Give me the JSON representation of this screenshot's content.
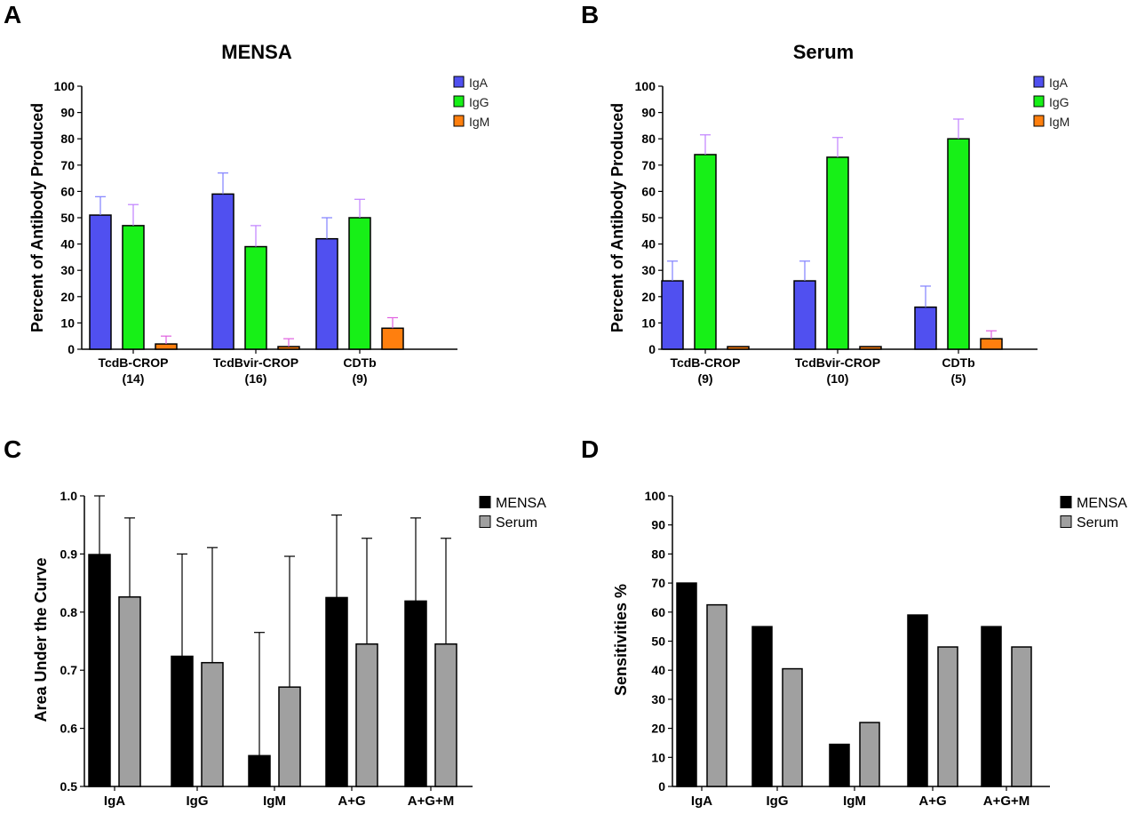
{
  "panels": [
    {
      "letter": "A",
      "chart_data": {
        "type": "bar",
        "title": "MENSA",
        "ylabel": "Percent of Antibody Produced",
        "xlabel": "",
        "ylim": [
          0,
          100
        ],
        "yticks": [
          0,
          10,
          20,
          30,
          40,
          50,
          60,
          70,
          80,
          90,
          100
        ],
        "categories": [
          "TcdB-CROP",
          "TcdBvir-CROP",
          "CDTb"
        ],
        "category_sublabels": [
          "(14)",
          "(16)",
          "(9)"
        ],
        "series": [
          {
            "name": "IgA",
            "color": "#5050f0",
            "values": [
              51,
              59,
              42
            ],
            "error": [
              7,
              8,
              8
            ]
          },
          {
            "name": "IgG",
            "color": "#17f017",
            "values": [
              47,
              39,
              50
            ],
            "error": [
              8,
              8,
              7
            ]
          },
          {
            "name": "IgM",
            "color": "#ff7f0e",
            "values": [
              2,
              1,
              8
            ],
            "error": [
              3,
              3,
              4
            ]
          }
        ],
        "error_bars": "upper",
        "legend": "top-right",
        "grid": false
      }
    },
    {
      "letter": "B",
      "chart_data": {
        "type": "bar",
        "title": "Serum",
        "ylabel": "Percent of Antibody Produced",
        "xlabel": "",
        "ylim": [
          0,
          100
        ],
        "yticks": [
          0,
          10,
          20,
          30,
          40,
          50,
          60,
          70,
          80,
          90,
          100
        ],
        "categories": [
          "TcdB-CROP",
          "TcdBvir-CROP",
          "CDTb"
        ],
        "category_sublabels": [
          "(9)",
          "(10)",
          "(5)"
        ],
        "series": [
          {
            "name": "IgA",
            "color": "#5050f0",
            "values": [
              26,
              26,
              16
            ],
            "error": [
              7.5,
              7.5,
              8
            ]
          },
          {
            "name": "IgG",
            "color": "#17f017",
            "values": [
              74,
              73,
              80
            ],
            "error": [
              7.5,
              7.5,
              7.5
            ]
          },
          {
            "name": "IgM",
            "color": "#ff7f0e",
            "values": [
              1,
              1,
              4
            ],
            "error": [
              0,
              0,
              3
            ]
          }
        ],
        "error_bars": "upper",
        "legend": "top-right",
        "grid": false
      }
    },
    {
      "letter": "C",
      "chart_data": {
        "type": "bar",
        "title": "",
        "ylabel": "Area Under the Curve",
        "xlabel": "",
        "ylim": [
          0.5,
          1.0
        ],
        "yticks": [
          "0.5",
          "0.6",
          "0.7",
          "0.8",
          "0.9",
          "1.0"
        ],
        "categories": [
          "IgA",
          "IgG",
          "IgM",
          "A+G",
          "A+G+M"
        ],
        "series": [
          {
            "name": "MENSA",
            "color": "#000000",
            "values": [
              0.899,
              0.724,
              0.553,
              0.825,
              0.819
            ],
            "error": [
              0.101,
              0.176,
              0.212,
              0.142,
              0.143
            ]
          },
          {
            "name": "Serum",
            "color": "#a0a0a0",
            "values": [
              0.826,
              0.713,
              0.671,
              0.745,
              0.745
            ],
            "error": [
              0.136,
              0.198,
              0.225,
              0.182,
              0.182
            ]
          }
        ],
        "error_bars": "upper",
        "legend": "top-right",
        "grid": false
      }
    },
    {
      "letter": "D",
      "chart_data": {
        "type": "bar",
        "title": "",
        "ylabel": "Sensitivities %",
        "xlabel": "",
        "ylim": [
          0,
          100
        ],
        "yticks": [
          0,
          10,
          20,
          30,
          40,
          50,
          60,
          70,
          80,
          90,
          100
        ],
        "categories": [
          "IgA",
          "IgG",
          "IgM",
          "A+G",
          "A+G+M"
        ],
        "series": [
          {
            "name": "MENSA",
            "color": "#000000",
            "values": [
              70,
              55,
              14.5,
              59,
              55
            ]
          },
          {
            "name": "Serum",
            "color": "#a0a0a0",
            "values": [
              62.5,
              40.5,
              22,
              48,
              48
            ]
          }
        ],
        "legend": "top-right",
        "grid": false
      }
    }
  ]
}
